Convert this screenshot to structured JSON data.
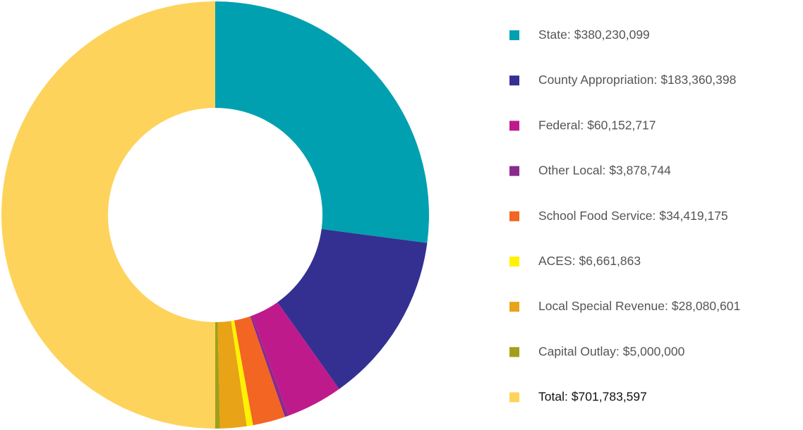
{
  "chart_data": {
    "type": "donut",
    "categories": [
      "State:",
      "County Appropriation:",
      "Federal:",
      "Other Local:",
      "School Food Service:",
      "ACES:",
      "Local Special Revenue:",
      "Capital Outlay:",
      "Total:"
    ],
    "values": [
      380230099,
      183360398,
      60152717,
      3878744,
      34419175,
      6661863,
      28080601,
      5000000,
      701783597
    ],
    "value_labels": [
      "$380,230,099",
      "$183,360,398",
      "$60,152,717",
      "$3,878,744",
      "$34,419,175",
      "$6,661,863",
      "$28,080,601",
      "$5,000,000",
      "$701,783,597"
    ],
    "colors": [
      "#00a0b0",
      "#333092",
      "#be1a8c",
      "#8a2a8c",
      "#f26522",
      "#fff200",
      "#e8a317",
      "#a0a019",
      "#fed35b"
    ],
    "legend": "right"
  }
}
